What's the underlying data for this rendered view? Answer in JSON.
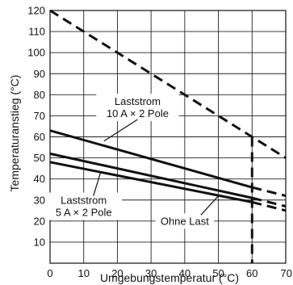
{
  "chart_data": {
    "type": "line",
    "xlabel": "Umgebungstemperatur (°C)",
    "ylabel": "Temperaturanstieg  (°C)",
    "xlim": [
      0,
      70
    ],
    "ylim": [
      0,
      120
    ],
    "x_ticks": [
      "0",
      "10",
      "20",
      "30",
      "40",
      "50",
      "60",
      "70"
    ],
    "y_ticks": [
      "10",
      "20",
      "30",
      "40",
      "50",
      "60",
      "70",
      "80",
      "90",
      "100",
      "110",
      "120"
    ],
    "grid": true,
    "series": [
      {
        "style": "dashed",
        "points": [
          [
            0,
            120
          ],
          [
            60,
            60
          ],
          [
            70,
            50
          ]
        ]
      },
      {
        "style": "dashed",
        "points": [
          [
            60,
            60
          ],
          [
            60,
            0
          ]
        ]
      },
      {
        "style": "solid",
        "points": [
          [
            0,
            63
          ],
          [
            60,
            36
          ]
        ]
      },
      {
        "style": "dashed",
        "points": [
          [
            60,
            36
          ],
          [
            70,
            32
          ]
        ]
      },
      {
        "style": "solid",
        "points": [
          [
            0,
            52
          ],
          [
            60,
            31
          ]
        ]
      },
      {
        "style": "dashed",
        "points": [
          [
            60,
            31
          ],
          [
            70,
            27
          ]
        ]
      },
      {
        "style": "solid",
        "points": [
          [
            0,
            48
          ],
          [
            60,
            29
          ]
        ]
      },
      {
        "style": "dashed",
        "points": [
          [
            60,
            29
          ],
          [
            70,
            25
          ]
        ]
      }
    ],
    "annotations": [
      {
        "lines": [
          "Laststrom",
          "10 A × 2 Pole"
        ],
        "anchor": [
          26,
          74
        ],
        "target": [
          16,
          58
        ]
      },
      {
        "lines": [
          "Laststrom",
          "5 A × 2 Pole"
        ],
        "anchor": [
          10,
          27
        ],
        "target": [
          15,
          43
        ]
      },
      {
        "lines": [
          "Ohne Last"
        ],
        "anchor": [
          40,
          20
        ],
        "target": [
          50,
          32
        ]
      }
    ]
  }
}
